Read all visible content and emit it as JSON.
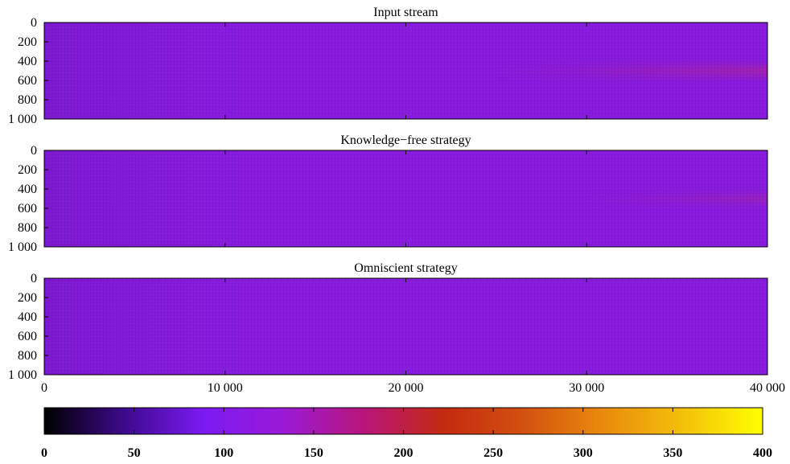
{
  "chart_data": {
    "type": "heatmap",
    "xlim": [
      0,
      40000
    ],
    "ylim": [
      0,
      1000
    ],
    "y_inverted": true,
    "x_ticks": [
      {
        "value": 0,
        "label": "0"
      },
      {
        "value": 10000,
        "label": "10 000"
      },
      {
        "value": 20000,
        "label": "20 000"
      },
      {
        "value": 30000,
        "label": "30 000"
      },
      {
        "value": 40000,
        "label": "40 000"
      }
    ],
    "y_ticks": [
      {
        "value": 0,
        "label": "0"
      },
      {
        "value": 200,
        "label": "200"
      },
      {
        "value": 400,
        "label": "400"
      },
      {
        "value": 600,
        "label": "600"
      },
      {
        "value": 800,
        "label": "800"
      },
      {
        "value": 1000,
        "label": "1 000"
      }
    ],
    "colorbar": {
      "range": [
        0,
        400
      ],
      "orientation": "horizontal",
      "palette": [
        "#000000",
        "#3d0a8c",
        "#7b1af2",
        "#9a1ad6",
        "#b8157a",
        "#c42a10",
        "#d35010",
        "#e98a0c",
        "#f3c00a",
        "#ffff00"
      ],
      "ticks": [
        {
          "value": 0,
          "label": "0"
        },
        {
          "value": 50,
          "label": "50"
        },
        {
          "value": 100,
          "label": "100"
        },
        {
          "value": 150,
          "label": "150"
        },
        {
          "value": 200,
          "label": "200"
        },
        {
          "value": 250,
          "label": "250"
        },
        {
          "value": 300,
          "label": "300"
        },
        {
          "value": 350,
          "label": "350"
        },
        {
          "value": 400,
          "label": "400"
        }
      ]
    },
    "panels": [
      {
        "title": "Input stream",
        "base_color": "#8a1ce2",
        "hotspot": {
          "x_start": 25000,
          "y_center": 500,
          "y_half_width": 120,
          "peak_value": 150,
          "color": "#a423b0"
        }
      },
      {
        "title": "Knowledge−free strategy",
        "base_color": "#8a1ce2",
        "hotspot": {
          "x_start": 30000,
          "y_center": 500,
          "y_half_width": 100,
          "peak_value": 140,
          "color": "#9b22c0"
        }
      },
      {
        "title": "Omniscient strategy",
        "base_color": "#8a1ce2",
        "hotspot": null
      }
    ]
  }
}
